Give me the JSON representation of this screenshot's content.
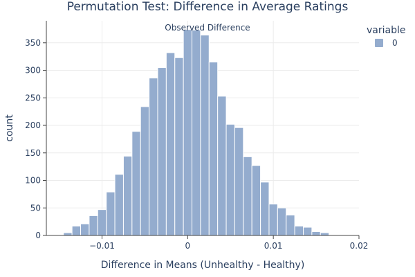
{
  "chart_data": {
    "type": "bar",
    "title": "Permutation Test: Difference in Average Ratings",
    "xlabel": "Difference in Means (Unhealthy - Healthy)",
    "ylabel": "count",
    "xlim": [
      -0.0165,
      0.02
    ],
    "ylim": [
      0,
      390
    ],
    "x_ticks": [
      -0.01,
      0,
      0.01,
      0.02
    ],
    "x_tick_labels": [
      "−0.01",
      "0",
      "0.01",
      "0.02"
    ],
    "y_ticks": [
      0,
      50,
      100,
      150,
      200,
      250,
      300,
      350
    ],
    "y_tick_labels": [
      "0",
      "50",
      "100",
      "150",
      "200",
      "250",
      "300",
      "350"
    ],
    "bin_width": 0.001,
    "bin_starts": [
      -0.0155,
      -0.0145,
      -0.0135,
      -0.0125,
      -0.0115,
      -0.0105,
      -0.0095,
      -0.0085,
      -0.0075,
      -0.0065,
      -0.0055,
      -0.0045,
      -0.0035,
      -0.0025,
      -0.0015,
      -0.0005,
      0.0005,
      0.0015,
      0.0025,
      0.0035,
      0.0045,
      0.0055,
      0.0065,
      0.0075,
      0.0085,
      0.0095,
      0.0105,
      0.0115,
      0.0125,
      0.0135,
      0.0145,
      0.0155,
      0.0165
    ],
    "series": [
      {
        "name": "0",
        "color": "#94acce",
        "values": [
          1,
          5,
          17,
          21,
          36,
          47,
          79,
          111,
          144,
          189,
          234,
          286,
          305,
          332,
          323,
          374,
          373,
          364,
          315,
          253,
          202,
          196,
          143,
          127,
          97,
          57,
          50,
          37,
          17,
          15,
          7,
          5,
          1
        ]
      }
    ],
    "legend": {
      "title": "variable",
      "position": "top-right",
      "items": [
        "0"
      ]
    },
    "annotation": {
      "text": "Observed Difference",
      "position": "top-center"
    },
    "grid": true
  }
}
